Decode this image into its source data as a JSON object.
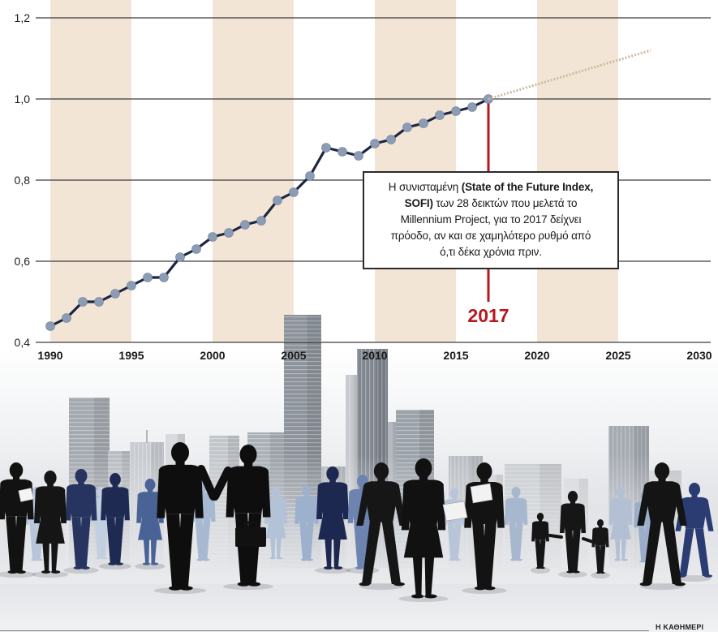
{
  "chart_data": {
    "type": "line",
    "title": "",
    "xlabel": "",
    "ylabel": "",
    "xlim": [
      1990,
      2030
    ],
    "ylim": [
      0.4,
      1.2
    ],
    "grid": true,
    "x_ticks": [
      {
        "value": 1990,
        "label": "1990"
      },
      {
        "value": 1995,
        "label": "1995"
      },
      {
        "value": 2000,
        "label": "2000"
      },
      {
        "value": 2005,
        "label": "2005"
      },
      {
        "value": 2010,
        "label": "2010"
      },
      {
        "value": 2015,
        "label": "2015"
      },
      {
        "value": 2020,
        "label": "2020"
      },
      {
        "value": 2025,
        "label": "2025"
      },
      {
        "value": 2030,
        "label": "2030"
      }
    ],
    "y_ticks": [
      {
        "value": 1.2,
        "label": "1,2"
      },
      {
        "value": 1.0,
        "label": "1,0"
      },
      {
        "value": 0.8,
        "label": "0,8"
      },
      {
        "value": 0.6,
        "label": "0,6"
      },
      {
        "value": 0.4,
        "label": "0,4"
      }
    ],
    "shaded_bands": [
      [
        1990,
        1995
      ],
      [
        2000,
        2005
      ],
      [
        2010,
        2015
      ],
      [
        2020,
        2025
      ]
    ],
    "series": [
      {
        "dotted": false,
        "markers": true,
        "x": [
          1990,
          1991,
          1992,
          1993,
          1994,
          1995,
          1996,
          1997,
          1998,
          1999,
          2000,
          2001,
          2002,
          2003,
          2004,
          2005,
          2006,
          2007,
          2008,
          2009,
          2010,
          2011,
          2012,
          2013,
          2014,
          2015,
          2016,
          2017
        ],
        "values": [
          0.44,
          0.46,
          0.5,
          0.5,
          0.52,
          0.54,
          0.56,
          0.56,
          0.61,
          0.63,
          0.66,
          0.67,
          0.69,
          0.7,
          0.75,
          0.77,
          0.81,
          0.88,
          0.87,
          0.86,
          0.89,
          0.9,
          0.93,
          0.94,
          0.96,
          0.97,
          0.98,
          1.0
        ]
      },
      {
        "dotted": true,
        "markers": false,
        "x": [
          2017,
          2027
        ],
        "values": [
          1.0,
          1.12
        ]
      }
    ],
    "highlight": {
      "x": 2017,
      "label": "2017"
    },
    "annotation": {
      "lines": [
        [
          {
            "text": "Η συνισταμένη ",
            "bold": false
          },
          {
            "text": "(State of the Future Index,",
            "bold": true
          }
        ],
        [
          {
            "text": "SOFI)",
            "bold": true
          },
          {
            "text": " των 28 δεικτών που μελετά το",
            "bold": false
          }
        ],
        [
          {
            "text": "Millennium Project, για το 2017 δείχνει",
            "bold": false
          }
        ],
        [
          {
            "text": "πρόοδο, αν και σε χαμηλότερο ρυθμό από",
            "bold": false
          }
        ],
        [
          {
            "text": "ό,τι δέκα χρόνια πριν.",
            "bold": false
          }
        ]
      ]
    }
  },
  "credit": "Η ΚΑΘΗΜΕΡΙ",
  "colors": {
    "band": "#f3e5d5",
    "line": "#1c2541",
    "marker": "#8c9cb5",
    "marker_stroke": "#6d7d98",
    "projection": "#cbbb9c",
    "highlight": "#b3191f",
    "grid": "#3c3c3c"
  }
}
